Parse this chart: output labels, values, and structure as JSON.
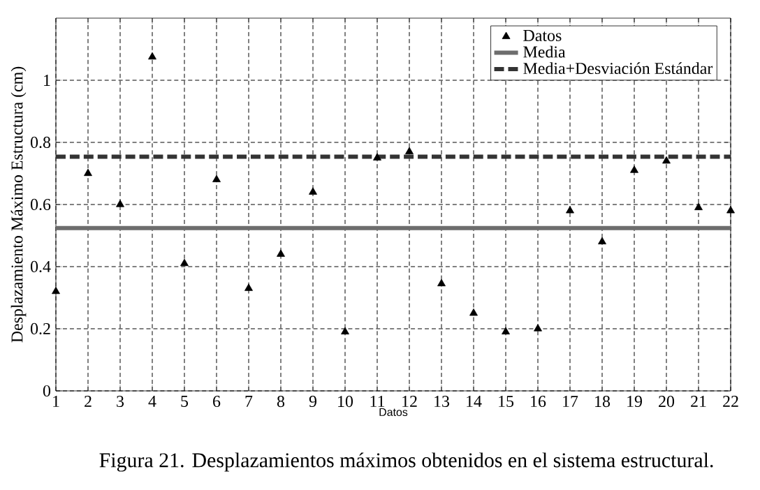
{
  "chart_data": {
    "type": "scatter",
    "xlabel": "Datos",
    "ylabel": "Desplazamiento Máximo Estructura (cm)",
    "annotations": [
      "Figura 21. Desplazamientos máximos obtenidos en el sistema estructural."
    ],
    "x": [
      1,
      2,
      3,
      4,
      5,
      6,
      7,
      8,
      9,
      10,
      11,
      12,
      13,
      14,
      15,
      16,
      17,
      18,
      19,
      20,
      21,
      22
    ],
    "series": [
      {
        "name": "Datos",
        "marker": "triangle",
        "color": "#000000",
        "values": [
          0.32,
          0.7,
          0.6,
          1.075,
          0.41,
          0.68,
          0.33,
          0.44,
          0.64,
          0.19,
          0.75,
          0.77,
          0.345,
          0.25,
          0.19,
          0.2,
          0.58,
          0.48,
          0.71,
          0.74,
          0.59,
          0.58
        ]
      }
    ],
    "ref_lines": [
      {
        "axis": "y",
        "value": 0.524,
        "label": "Media",
        "line_style": "solid",
        "color": "#6d6d6d"
      },
      {
        "axis": "y",
        "value": 0.754,
        "label": "Media+Desviación Estándar",
        "line_style": "dashed",
        "color": "#333333"
      }
    ],
    "xlim": [
      1,
      22
    ],
    "ylim": [
      0,
      1.2
    ],
    "xticks": [
      1,
      2,
      3,
      4,
      5,
      6,
      7,
      8,
      9,
      10,
      11,
      12,
      13,
      14,
      15,
      16,
      17,
      18,
      19,
      20,
      21,
      22
    ],
    "yticks": [
      0,
      0.2,
      0.4,
      0.6,
      0.8,
      1
    ],
    "grid": true,
    "legend": "top right"
  }
}
